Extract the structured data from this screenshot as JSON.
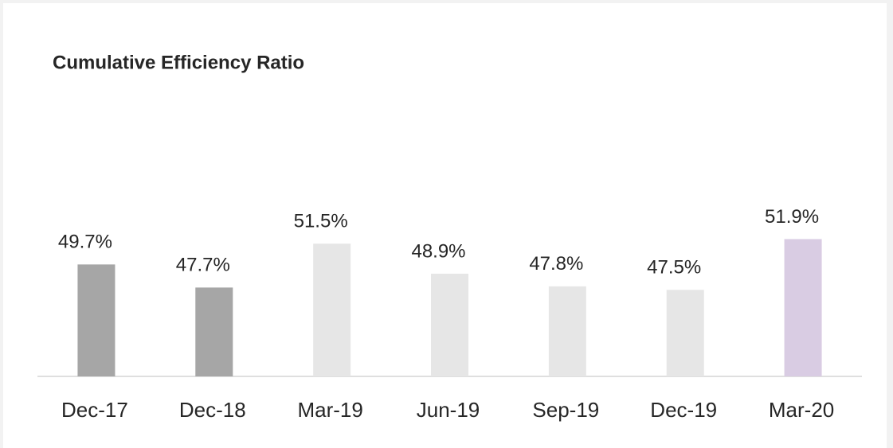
{
  "chart_data": {
    "type": "bar",
    "title": "Cumulative Efficiency Ratio",
    "categories": [
      "Dec-17",
      "Dec-18",
      "Mar-19",
      "Jun-19",
      "Sep-19",
      "Dec-19",
      "Mar-20"
    ],
    "values": [
      49.7,
      47.7,
      51.5,
      48.9,
      47.8,
      47.5,
      51.9
    ],
    "value_labels": [
      "49.7%",
      "47.7%",
      "51.5%",
      "48.9%",
      "47.8%",
      "47.5%",
      "51.9%"
    ],
    "colors": [
      "#a6a6a6",
      "#a6a6a6",
      "#e6e6e6",
      "#e6e6e6",
      "#e6e6e6",
      "#e6e6e6",
      "#d9cce3"
    ],
    "ylim": [
      40,
      55
    ]
  }
}
